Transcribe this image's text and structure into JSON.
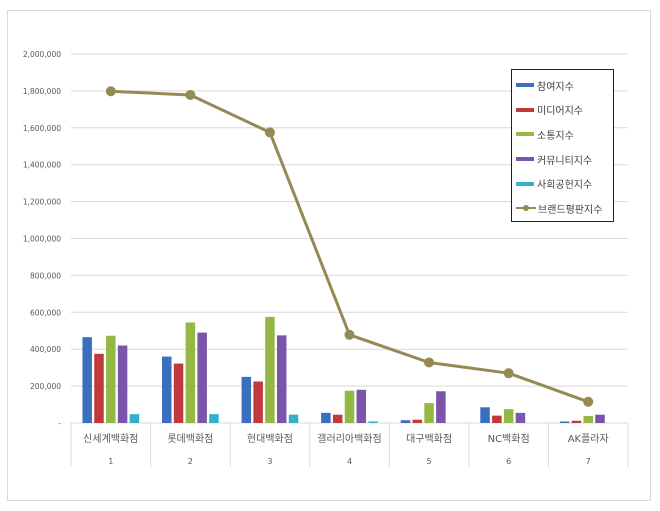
{
  "chart_data": {
    "type": "bar+line",
    "title": "",
    "xlabel": "",
    "ylabel": "",
    "ylim": [
      0,
      2000000
    ],
    "y_ticks": [
      "-",
      "200,000",
      "400,000",
      "600,000",
      "800,000",
      "1,000,000",
      "1,200,000",
      "1,400,000",
      "1,600,000",
      "1,800,000",
      "2,000,000"
    ],
    "grid": true,
    "legend_position": "top-right inside",
    "categories": [
      "신세계백화점",
      "롯데백화점",
      "현대백화점",
      "갤러리아백화점",
      "대구백화점",
      "NC백화점",
      "AK플라자"
    ],
    "category_numbers": [
      "1",
      "2",
      "3",
      "4",
      "5",
      "6",
      "7"
    ],
    "series": [
      {
        "name": "참여지수",
        "type": "bar",
        "color": "#3a6fbf",
        "values": [
          465000,
          360000,
          250000,
          55000,
          15000,
          85000,
          8000
        ]
      },
      {
        "name": "미디어지수",
        "type": "bar",
        "color": "#c0393b",
        "values": [
          375000,
          322000,
          225000,
          45000,
          18000,
          40000,
          12000
        ]
      },
      {
        "name": "소통지수",
        "type": "bar",
        "color": "#93b944",
        "values": [
          473000,
          545000,
          575000,
          175000,
          108000,
          75000,
          38000
        ]
      },
      {
        "name": "커뮤니티지수",
        "type": "bar",
        "color": "#7b55a8",
        "values": [
          420000,
          490000,
          475000,
          180000,
          172000,
          55000,
          45000
        ]
      },
      {
        "name": "사회공헌지수",
        "type": "bar",
        "color": "#33aecb",
        "values": [
          48000,
          48000,
          45000,
          8000,
          0,
          0,
          0
        ]
      },
      {
        "name": "브랜드평판지수",
        "type": "line",
        "color": "#948a54",
        "values": [
          1798000,
          1778000,
          1575000,
          478000,
          328000,
          270000,
          115000
        ]
      }
    ]
  },
  "legend": {
    "items": [
      {
        "label": "참여지수",
        "color": "#3a6fbf"
      },
      {
        "label": "미디어지수",
        "color": "#c0393b"
      },
      {
        "label": "소통지수",
        "color": "#93b944"
      },
      {
        "label": "커뮤니티지수",
        "color": "#7b55a8"
      },
      {
        "label": "사회공헌지수",
        "color": "#33aecb"
      },
      {
        "label": "브랜드평판지수",
        "color": "#948a54"
      }
    ]
  }
}
